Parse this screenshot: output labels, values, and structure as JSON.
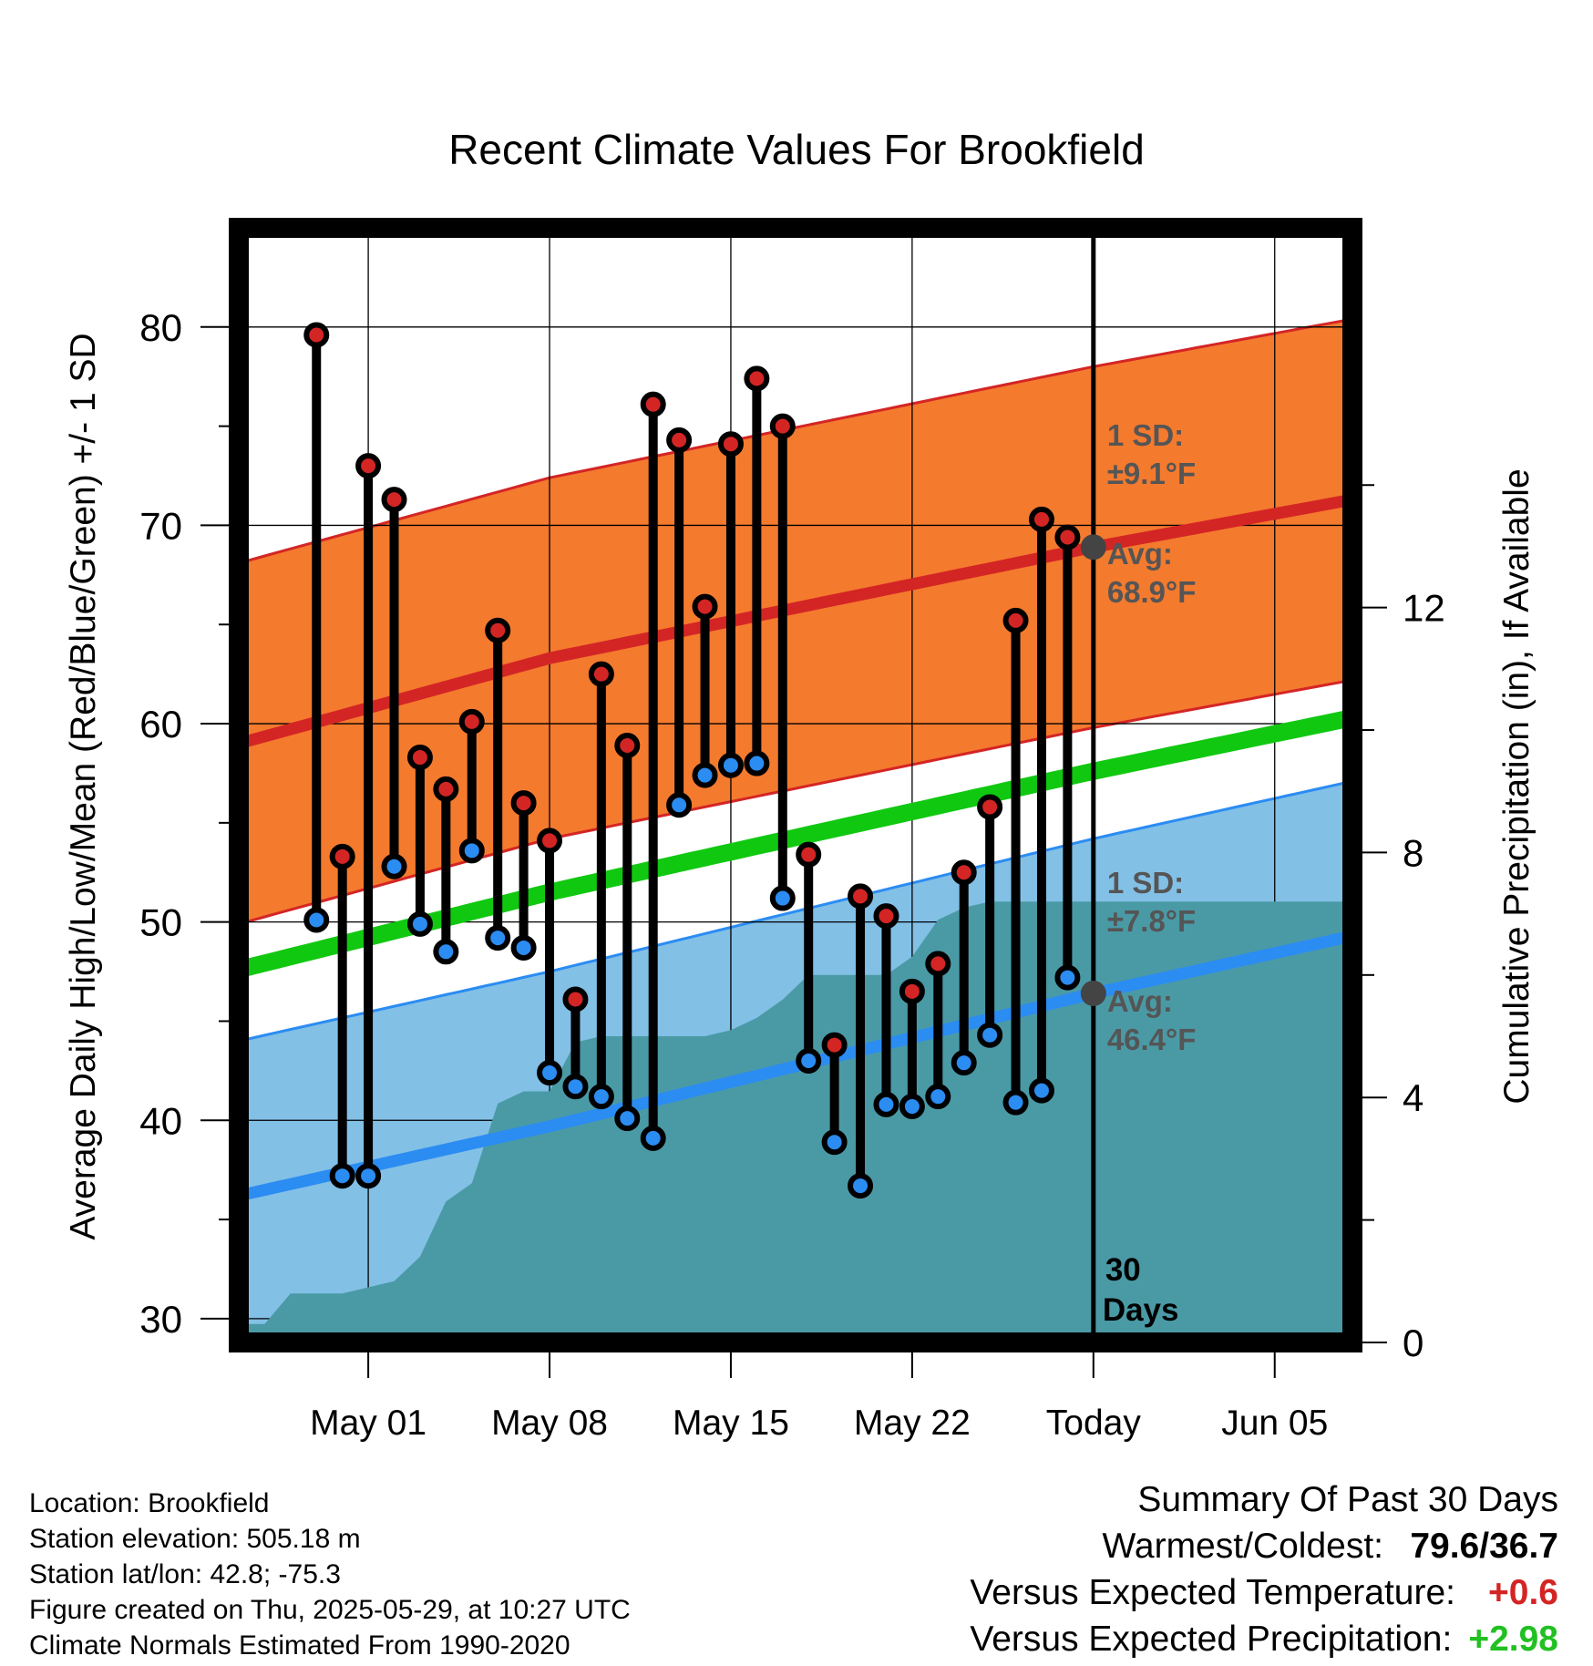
{
  "chart_data": {
    "type": "line",
    "title": "Recent Climate Values For Brookfield",
    "xlabel": "Day",
    "ylabel": "Average Daily High/Low/Mean (Red/Blue/Green) +/- 1 SD",
    "y2label": "Cumulative Precipitation (in), If Available",
    "ylim": [
      28.8,
      85.0
    ],
    "y2lim": [
      0,
      18.2
    ],
    "yticks": [
      "30",
      "40",
      "50",
      "60",
      "70",
      "80"
    ],
    "y2ticks": [
      "0",
      "4",
      "8",
      "12"
    ],
    "xlim": [
      "Apr 26",
      "Jun 08"
    ],
    "xticks": [
      {
        "date": "2025-05-01",
        "label": "May 01"
      },
      {
        "date": "2025-05-08",
        "label": "May 08"
      },
      {
        "date": "2025-05-15",
        "label": "May 15"
      },
      {
        "date": "2025-05-22",
        "label": "May 22"
      },
      {
        "date": "2025-05-29",
        "label": "Today"
      },
      {
        "date": "2025-06-05",
        "label": "Jun 05"
      }
    ],
    "grid": true,
    "today": "2025-05-29",
    "period_label": [
      "30",
      "Days"
    ],
    "dates": [
      "Apr 29",
      "Apr 30",
      "May 01",
      "May 02",
      "May 03",
      "May 04",
      "May 05",
      "May 06",
      "May 07",
      "May 08",
      "May 09",
      "May 10",
      "May 11",
      "May 12",
      "May 13",
      "May 14",
      "May 15",
      "May 16",
      "May 17",
      "May 18",
      "May 19",
      "May 20",
      "May 21",
      "May 22",
      "May 23",
      "May 24",
      "May 25",
      "May 26",
      "May 27",
      "May 28"
    ],
    "daily_high": [
      79.6,
      53.3,
      73.0,
      71.3,
      58.3,
      56.7,
      60.1,
      64.7,
      56.0,
      54.1,
      46.1,
      62.5,
      58.9,
      76.1,
      74.3,
      65.9,
      74.1,
      77.4,
      75.0,
      53.4,
      43.8,
      51.3,
      50.3,
      46.5,
      47.9,
      52.5,
      55.8,
      65.2,
      70.3,
      69.4
    ],
    "daily_low": [
      50.1,
      37.2,
      37.2,
      52.8,
      49.9,
      48.5,
      53.6,
      49.2,
      48.7,
      42.4,
      41.7,
      41.2,
      40.1,
      39.1,
      55.9,
      57.4,
      57.9,
      58.0,
      51.2,
      43.0,
      38.9,
      36.7,
      40.8,
      40.7,
      41.2,
      42.9,
      44.3,
      40.9,
      41.5,
      47.2
    ],
    "normal_high": {
      "dates": [
        "Apr 26",
        "May 08",
        "May 29",
        "Jun 08"
      ],
      "values": [
        59.0,
        63.3,
        68.9,
        71.3
      ],
      "sd": 9.1,
      "label": [
        "1 SD:",
        "±9.1°F",
        "Avg:",
        "68.9°F"
      ]
    },
    "normal_low": {
      "dates": [
        "Apr 26",
        "May 08",
        "May 29",
        "Jun 08"
      ],
      "values": [
        36.2,
        39.7,
        46.4,
        49.3
      ],
      "sd": 7.8,
      "label": [
        "1 SD:",
        "±7.8°F",
        "Avg:",
        "46.4°F"
      ]
    },
    "normal_mean": {
      "dates": [
        "Apr 26",
        "May 08",
        "May 29",
        "Jun 08"
      ],
      "values": [
        47.6,
        51.5,
        57.6,
        60.3
      ]
    },
    "cumulative_precip": {
      "dates": [
        "Apr 26",
        "Apr 27",
        "Apr 28",
        "Apr 29",
        "Apr 30",
        "May 01",
        "May 02",
        "May 03",
        "May 04",
        "May 05",
        "May 06",
        "May 07",
        "May 08",
        "May 09",
        "May 10",
        "May 11",
        "May 12",
        "May 13",
        "May 14",
        "May 15",
        "May 16",
        "May 17",
        "May 18",
        "May 19",
        "May 20",
        "May 21",
        "May 22",
        "May 23",
        "May 24",
        "May 25",
        "May 26",
        "May 27",
        "May 28",
        "May 29",
        "Jun 08"
      ],
      "values": [
        0.3,
        0.3,
        0.8,
        0.8,
        0.8,
        0.9,
        1.0,
        1.4,
        2.3,
        2.6,
        3.9,
        4.1,
        4.1,
        4.9,
        5.0,
        5.0,
        5.0,
        5.0,
        5.0,
        5.1,
        5.3,
        5.6,
        6.0,
        6.0,
        6.0,
        6.0,
        6.3,
        6.9,
        7.1,
        7.2,
        7.2,
        7.2,
        7.2,
        7.2,
        7.2
      ]
    },
    "colors": {
      "high": "#d42525",
      "low": "#2b8cf2",
      "mean": "#11c811",
      "high_band": "#f47a2e",
      "low_band": "#82c0e6",
      "precip": "#4a9aa6",
      "avg_label": "#555555"
    }
  },
  "info": {
    "location": "Location: Brookfield",
    "elevation": "Station elevation: 505.18 m",
    "latlon": "Station lat/lon: 42.8; -75.3",
    "created": "Figure created on Thu, 2025-05-29, at 10:27 UTC",
    "normals": "Climate Normals Estimated From 1990-2020"
  },
  "summary": {
    "title": "Summary Of Past 30 Days",
    "warm_cold_label": "Warmest/Coldest:",
    "warm_cold_value": "79.6/36.7",
    "temp_label": "Versus Expected Temperature:",
    "temp_value": "+0.6",
    "temp_color": "#d42525",
    "precip_label": "Versus Expected Precipitation:",
    "precip_value": "+2.98",
    "precip_color": "#22c022"
  }
}
